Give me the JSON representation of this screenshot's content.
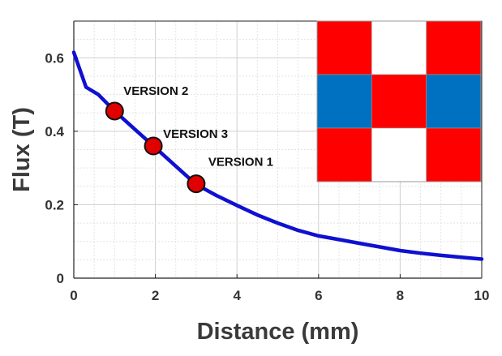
{
  "chart_data": {
    "type": "line",
    "xlabel": "Distance (mm)",
    "ylabel": "Flux (T)",
    "xlim": [
      0,
      10
    ],
    "ylim": [
      0,
      0.7
    ],
    "x_ticks": [
      0,
      2,
      4,
      6,
      8,
      10
    ],
    "y_ticks": [
      0,
      0.2,
      0.4,
      0.6
    ],
    "x_tick_labels": [
      "0",
      "2",
      "4",
      "6",
      "8",
      "10"
    ],
    "y_tick_labels": [
      "0",
      "0.2",
      "0.4",
      "0.6"
    ],
    "grid": true,
    "series": [
      {
        "color": "#1010d0",
        "x": [
          0,
          0.3,
          0.6,
          1.0,
          1.5,
          2.0,
          2.5,
          3.0,
          3.5,
          4.0,
          4.5,
          5.0,
          5.5,
          6.0,
          6.5,
          7.0,
          7.5,
          8.0,
          8.5,
          9.0,
          9.5,
          10.0
        ],
        "y": [
          0.615,
          0.52,
          0.5,
          0.455,
          0.405,
          0.355,
          0.305,
          0.255,
          0.225,
          0.198,
          0.172,
          0.15,
          0.13,
          0.115,
          0.105,
          0.095,
          0.085,
          0.075,
          0.068,
          0.062,
          0.057,
          0.052
        ]
      }
    ],
    "markers": [
      {
        "label": "VERSION 2",
        "x": 1.0,
        "y": 0.455,
        "color": "#e00000"
      },
      {
        "label": "VERSION 3",
        "x": 1.95,
        "y": 0.36,
        "color": "#e00000"
      },
      {
        "label": "VERSION 1",
        "x": 3.0,
        "y": 0.257,
        "color": "#e00000"
      }
    ],
    "inset_grid": {
      "rows": 3,
      "cols": 3,
      "colors": [
        [
          "#ff0000",
          "#ffffff",
          "#ff0000"
        ],
        [
          "#0070c0",
          "#ff0000",
          "#0070c0"
        ],
        [
          "#ff0000",
          "#ffffff",
          "#ff0000"
        ]
      ]
    }
  }
}
